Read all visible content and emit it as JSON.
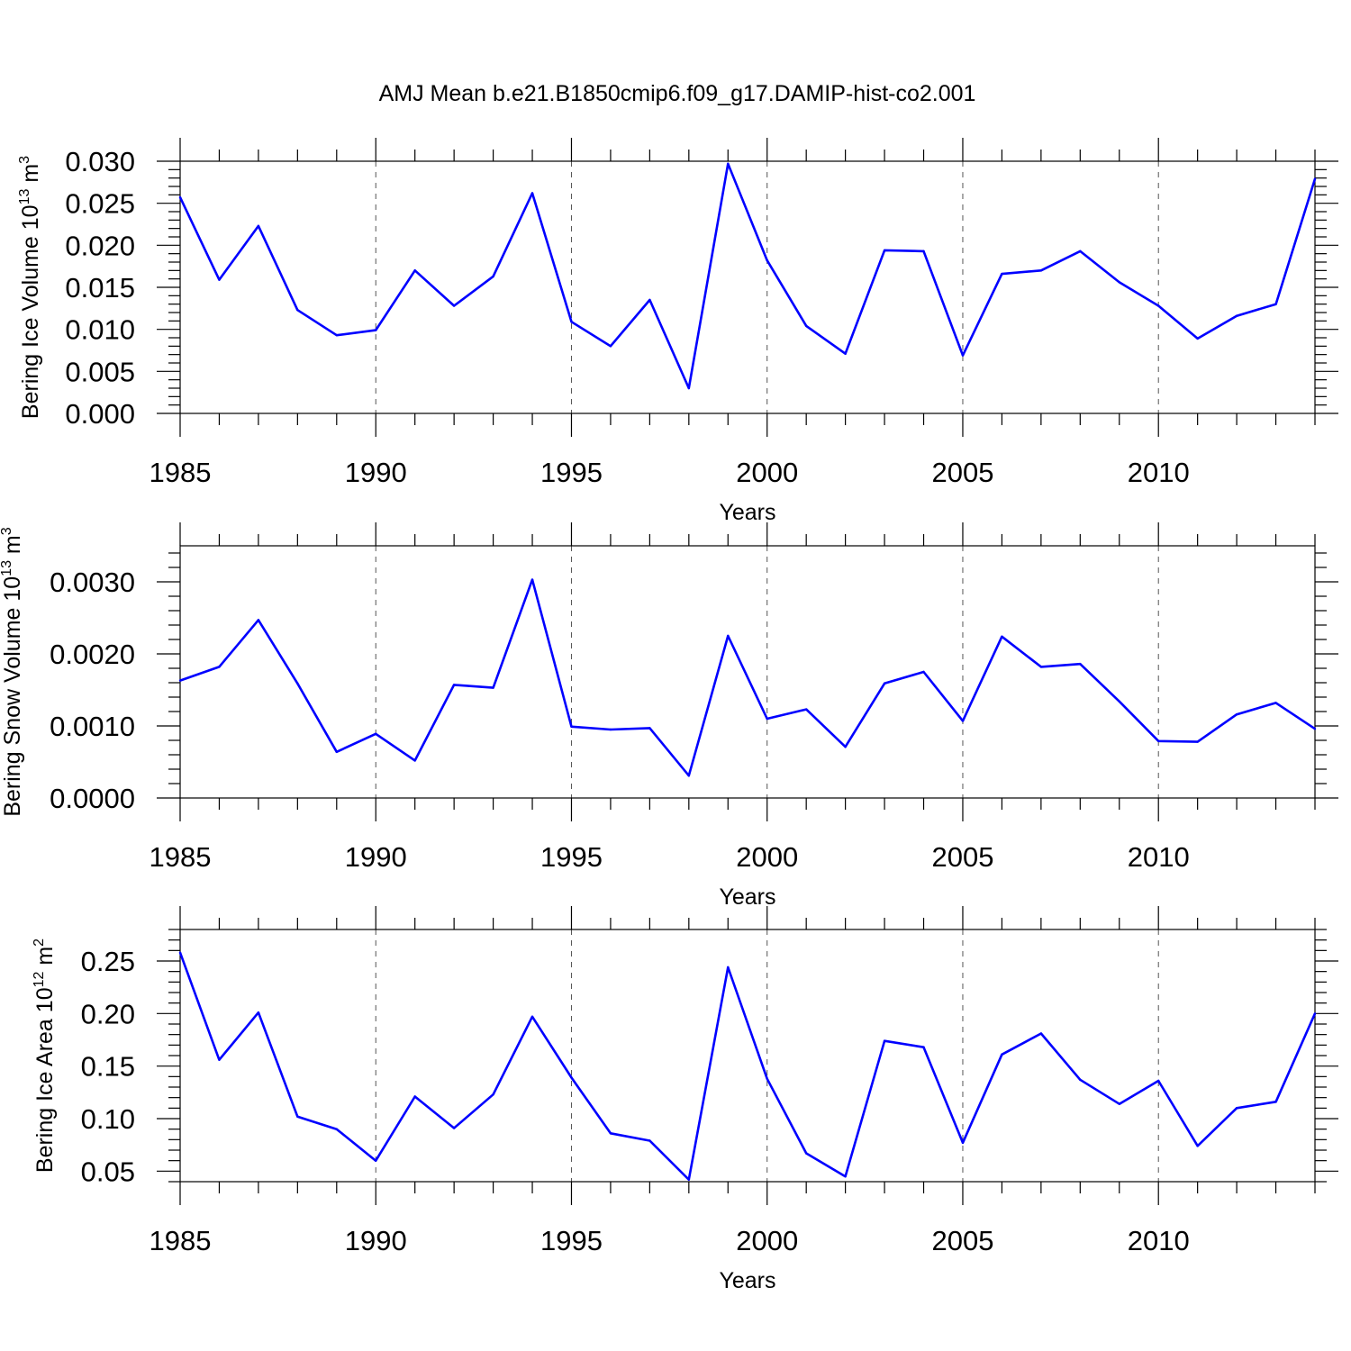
{
  "title": "AMJ Mean b.e21.B1850cmip6.f09_g17.DAMIP-hist-co2.001",
  "colors": {
    "line": "#0000ff",
    "axis": "#000000",
    "grid": "#555555"
  },
  "chart_data": [
    {
      "type": "line",
      "xlabel": "Years",
      "ylabel": "Bering Ice Volume 10",
      "ylabel_sup": "13",
      "ylabel_unit": " m",
      "ylabel_unit_sup": "3",
      "xlim": [
        1985,
        2014
      ],
      "ylim": [
        0.0,
        0.03
      ],
      "yticks": [
        "0.000",
        "0.005",
        "0.010",
        "0.015",
        "0.020",
        "0.025",
        "0.030"
      ],
      "xticks": [
        "1985",
        "1990",
        "1995",
        "2000",
        "2005",
        "2010"
      ],
      "grid": "vertical dashed at major x ticks",
      "x": [
        1985,
        1986,
        1987,
        1988,
        1989,
        1990,
        1991,
        1992,
        1993,
        1994,
        1995,
        1996,
        1997,
        1998,
        1999,
        2000,
        2001,
        2002,
        2003,
        2004,
        2005,
        2006,
        2007,
        2008,
        2009,
        2010,
        2011,
        2012,
        2013,
        2014
      ],
      "values": [
        0.0257,
        0.0159,
        0.0223,
        0.0123,
        0.0093,
        0.0099,
        0.017,
        0.0128,
        0.0163,
        0.0262,
        0.0109,
        0.008,
        0.0135,
        0.003,
        0.0297,
        0.0182,
        0.0104,
        0.0071,
        0.0194,
        0.0193,
        0.0069,
        0.0166,
        0.017,
        0.0193,
        0.0156,
        0.0128,
        0.0089,
        0.0116,
        0.013,
        0.0279
      ]
    },
    {
      "type": "line",
      "xlabel": "Years",
      "ylabel": "Bering Snow Volume 10",
      "ylabel_sup": "13",
      "ylabel_unit": " m",
      "ylabel_unit_sup": "3",
      "xlim": [
        1985,
        2014
      ],
      "ylim": [
        0.0,
        0.0035
      ],
      "yticks": [
        "0.0000",
        "0.0010",
        "0.0020",
        "0.0030"
      ],
      "xticks": [
        "1985",
        "1990",
        "1995",
        "2000",
        "2005",
        "2010"
      ],
      "grid": "vertical dashed at major x ticks",
      "x": [
        1985,
        1986,
        1987,
        1988,
        1989,
        1990,
        1991,
        1992,
        1993,
        1994,
        1995,
        1996,
        1997,
        1998,
        1999,
        2000,
        2001,
        2002,
        2003,
        2004,
        2005,
        2006,
        2007,
        2008,
        2009,
        2010,
        2011,
        2012,
        2013,
        2014
      ],
      "values": [
        0.00163,
        0.00182,
        0.00247,
        0.00159,
        0.00064,
        0.00089,
        0.00052,
        0.00157,
        0.00153,
        0.00303,
        0.00099,
        0.00095,
        0.00097,
        0.00031,
        0.00225,
        0.0011,
        0.00123,
        0.00071,
        0.00159,
        0.00175,
        0.00107,
        0.00224,
        0.00182,
        0.00186,
        0.00134,
        0.00079,
        0.00078,
        0.00116,
        0.00132,
        0.00096
      ]
    },
    {
      "type": "line",
      "xlabel": "Years",
      "ylabel": "Bering Ice Area 10",
      "ylabel_sup": "12",
      "ylabel_unit": " m",
      "ylabel_unit_sup": "2",
      "xlim": [
        1985,
        2014
      ],
      "ylim": [
        0.04,
        0.28
      ],
      "yticks": [
        "0.05",
        "0.10",
        "0.15",
        "0.20",
        "0.25"
      ],
      "xticks": [
        "1985",
        "1990",
        "1995",
        "2000",
        "2005",
        "2010"
      ],
      "grid": "vertical dashed at major x ticks",
      "x": [
        1985,
        1986,
        1987,
        1988,
        1989,
        1990,
        1991,
        1992,
        1993,
        1994,
        1995,
        1996,
        1997,
        1998,
        1999,
        2000,
        2001,
        2002,
        2003,
        2004,
        2005,
        2006,
        2007,
        2008,
        2009,
        2010,
        2011,
        2012,
        2013,
        2014
      ],
      "values": [
        0.258,
        0.156,
        0.201,
        0.102,
        0.09,
        0.06,
        0.121,
        0.091,
        0.123,
        0.197,
        0.139,
        0.086,
        0.079,
        0.042,
        0.244,
        0.138,
        0.067,
        0.045,
        0.174,
        0.168,
        0.077,
        0.161,
        0.181,
        0.137,
        0.114,
        0.136,
        0.074,
        0.11,
        0.116,
        0.2
      ]
    }
  ]
}
